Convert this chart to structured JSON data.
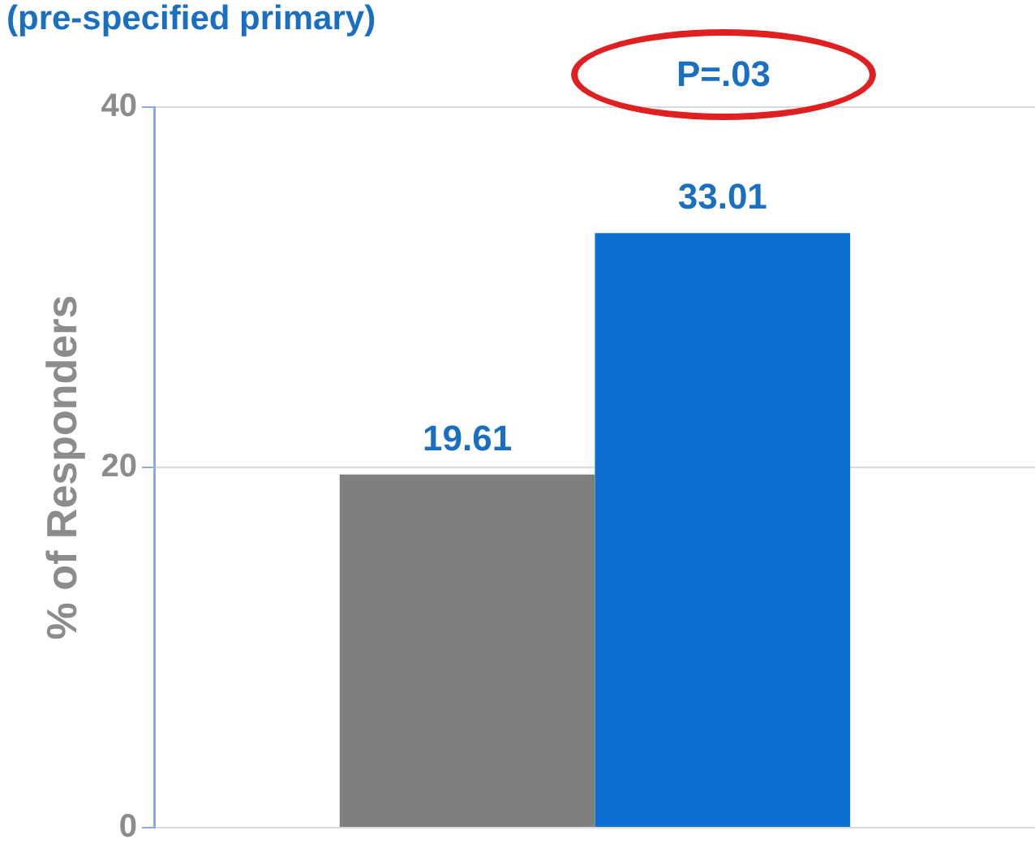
{
  "chart_data": {
    "type": "bar",
    "title": "(pre-specified primary)",
    "ylabel": "% of Responders",
    "categories": [
      null
    ],
    "series": [
      {
        "color": "#7f7f7f",
        "values": [
          19.61
        ]
      },
      {
        "color": "#0b6fd0",
        "values": [
          33.01
        ]
      }
    ],
    "ylim": [
      0,
      40
    ],
    "yticks": [
      0,
      20,
      40
    ],
    "grid": "y",
    "data_labels": true,
    "tick_labels": "y",
    "annotations": [
      "P=.03"
    ]
  }
}
